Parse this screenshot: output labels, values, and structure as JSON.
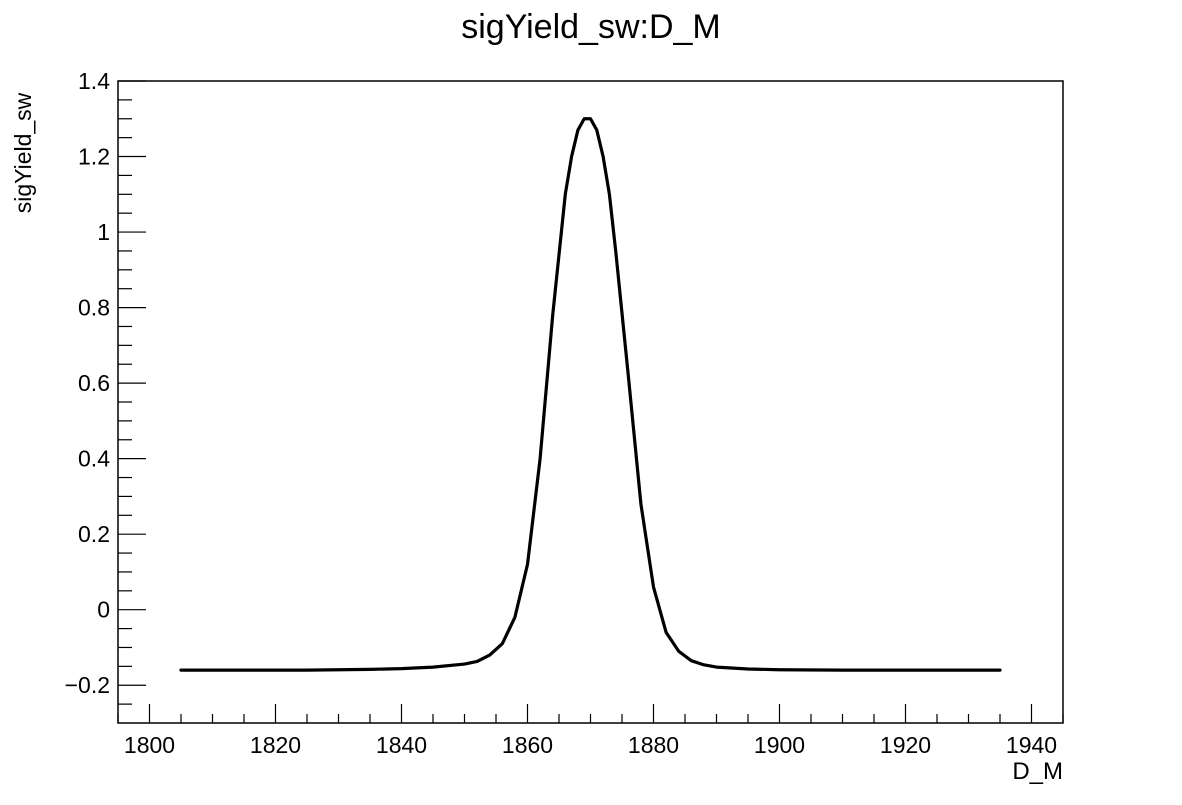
{
  "chart_data": {
    "type": "line",
    "title": "sigYield_sw:D_M",
    "xlabel": "D_M",
    "ylabel": "sigYield_sw",
    "xlim": [
      1795,
      1945
    ],
    "ylim": [
      -0.3,
      1.4
    ],
    "x_ticks": [
      1800,
      1820,
      1840,
      1860,
      1880,
      1900,
      1920,
      1940
    ],
    "x_tick_labels": [
      "1800",
      "1820",
      "1840",
      "1860",
      "1880",
      "1900",
      "1920",
      "1940"
    ],
    "y_ticks": [
      -0.2,
      0,
      0.2,
      0.4,
      0.6,
      0.8,
      1,
      1.2,
      1.4
    ],
    "y_tick_labels": [
      "−0.2",
      "0",
      "0.2",
      "0.4",
      "0.6",
      "0.8",
      "1",
      "1.2",
      "1.4"
    ],
    "grid": false,
    "line_color": "#000000",
    "series": [
      {
        "x": [
          1805,
          1815,
          1825,
          1835,
          1840,
          1845,
          1850,
          1852,
          1854,
          1856,
          1858,
          1860,
          1862,
          1864,
          1866,
          1867,
          1868,
          1869,
          1870,
          1871,
          1872,
          1873,
          1874,
          1876,
          1878,
          1880,
          1882,
          1884,
          1886,
          1888,
          1890,
          1895,
          1900,
          1910,
          1920,
          1935
        ],
        "y": [
          -0.16,
          -0.16,
          -0.16,
          -0.158,
          -0.156,
          -0.152,
          -0.144,
          -0.137,
          -0.12,
          -0.09,
          -0.02,
          0.12,
          0.4,
          0.78,
          1.1,
          1.2,
          1.27,
          1.3,
          1.3,
          1.27,
          1.2,
          1.1,
          0.95,
          0.62,
          0.28,
          0.06,
          -0.06,
          -0.11,
          -0.135,
          -0.146,
          -0.152,
          -0.157,
          -0.159,
          -0.16,
          -0.16,
          -0.16
        ]
      }
    ]
  }
}
